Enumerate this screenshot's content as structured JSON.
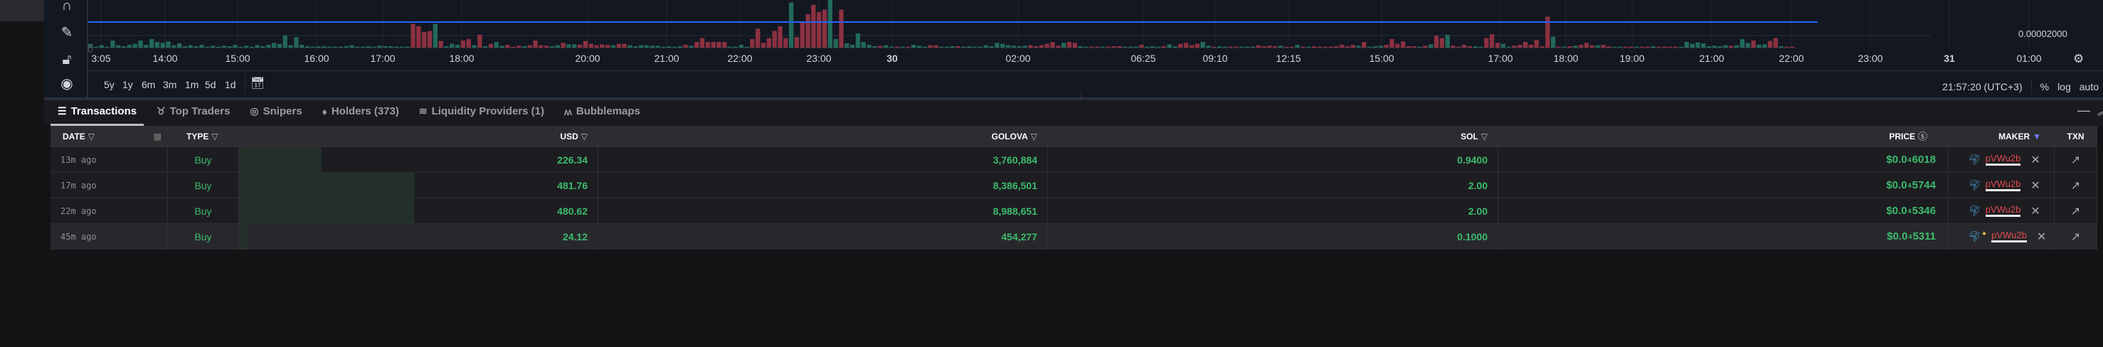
{
  "chart": {
    "price_axis_label": "0.00002000",
    "time_ticks": [
      "3:05",
      "14:00",
      "15:00",
      "16:00",
      "17:00",
      "18:00",
      "20:00",
      "21:00",
      "22:00",
      "23:00",
      "30",
      "02:00",
      "06:25",
      "09:10",
      "12:15",
      "15:00",
      "17:00",
      "18:00",
      "19:00",
      "21:00",
      "22:00",
      "23:00",
      "31",
      "01:00"
    ],
    "ranges": [
      "5y",
      "1y",
      "6m",
      "3m",
      "1m",
      "5d",
      "1d"
    ],
    "clock": "21:57:20 (UTC+3)",
    "scale_options": [
      "%",
      "log",
      "auto"
    ],
    "colors": {
      "up": "#22695a",
      "down": "#8c3140",
      "line": "#2962ff"
    },
    "volume": [
      8,
      2,
      5,
      2,
      15,
      5,
      3,
      6,
      8,
      15,
      6,
      18,
      12,
      10,
      13,
      5,
      9,
      3,
      5,
      3,
      6,
      2,
      4,
      2,
      4,
      3,
      6,
      2,
      4,
      2,
      5,
      3,
      6,
      10,
      8,
      26,
      5,
      22,
      6,
      3,
      2,
      3,
      3,
      2,
      2,
      2,
      3,
      5,
      2,
      2,
      3,
      2,
      4,
      3,
      3,
      2,
      2,
      2,
      -50,
      -45,
      -33,
      -35,
      50,
      -14,
      3,
      8,
      6,
      -15,
      -18,
      5,
      -27,
      3,
      -8,
      12,
      4,
      -6,
      -2,
      -4,
      3,
      -5,
      -15,
      -5,
      -4,
      3,
      5,
      -10,
      7,
      7,
      -6,
      -14,
      -8,
      -5,
      -7,
      -6,
      5,
      -8,
      -8,
      5,
      3,
      5,
      5,
      4,
      4,
      2,
      3,
      2,
      3,
      -6,
      4,
      -12,
      -20,
      -12,
      -12,
      -12,
      -12,
      2,
      2,
      6,
      2,
      -18,
      -40,
      -10,
      -20,
      -35,
      -45,
      -20,
      95,
      -22,
      -55,
      -70,
      -90,
      -75,
      -80,
      100,
      18,
      -80,
      9,
      6,
      30,
      12,
      6,
      3,
      -4,
      5,
      2,
      -2,
      2,
      -2,
      6,
      4,
      2,
      -5,
      -5,
      2,
      2,
      3,
      -3,
      2,
      3,
      2,
      2,
      5,
      3,
      10,
      8,
      5,
      4,
      3,
      4,
      -5,
      -3,
      -5,
      -8,
      -12,
      -4,
      10,
      -12,
      -10,
      3,
      2,
      -2,
      -2,
      2,
      -2,
      -3,
      -3,
      2,
      2,
      2,
      -6,
      2,
      3,
      2,
      -3,
      7,
      3,
      -8,
      -10,
      -5,
      -8,
      12,
      4,
      -2,
      3,
      2,
      -2,
      -2,
      2,
      2,
      2,
      -5,
      -3,
      -4,
      -3,
      4,
      -2,
      -2,
      6,
      -2,
      2,
      -3,
      -2,
      -2,
      -2,
      -3,
      -6,
      -3,
      -6,
      4,
      -12,
      2,
      3,
      4,
      -6,
      -18,
      -8,
      -13,
      -3,
      -3,
      2,
      -4,
      7,
      -25,
      -20,
      27,
      -4,
      -2,
      -6,
      -3,
      3,
      2,
      -20,
      -28,
      -10,
      8,
      2,
      -4,
      -6,
      -12,
      -6,
      -16,
      -3,
      -65,
      23,
      -2,
      2,
      -3,
      4,
      -6,
      -10,
      -5,
      5,
      -6,
      -3,
      2,
      2,
      -2,
      -2,
      2,
      -2,
      -2,
      3,
      -2,
      -2,
      -2,
      -2,
      2,
      12,
      8,
      11,
      9,
      3,
      4,
      3,
      5,
      -4,
      5,
      18,
      10,
      -15,
      6,
      7,
      -14,
      -20,
      3,
      -2,
      -2
    ]
  },
  "tabs": [
    {
      "label": "Transactions",
      "icon": "list-icon"
    },
    {
      "label": "Top Traders",
      "icon": "medal-icon"
    },
    {
      "label": "Snipers",
      "icon": "target-icon"
    },
    {
      "label": "Holders (373)",
      "icon": "diamond-icon"
    },
    {
      "label": "Liquidity Providers (1)",
      "icon": "waves-icon"
    },
    {
      "label": "Bubblemaps",
      "icon": "bubblemaps-icon"
    }
  ],
  "table": {
    "headers": {
      "date": "DATE",
      "type": "TYPE",
      "usd": "USD",
      "token": "GOLOVA",
      "sol": "SOL",
      "price": "PRICE",
      "maker": "MAKER",
      "txn": "TXN"
    },
    "rows": [
      {
        "date": "13m ago",
        "type": "Buy",
        "usd": "226.34",
        "usd_value": 226.34,
        "token": "3,760,884",
        "sol": "0.9400",
        "price_pre": "$0.0",
        "price_sub": "4",
        "price_digits": "6018",
        "maker": "pVWu2b"
      },
      {
        "date": "17m ago",
        "type": "Buy",
        "usd": "481.76",
        "usd_value": 481.76,
        "token": "8,386,501",
        "sol": "2.00",
        "price_pre": "$0.0",
        "price_sub": "4",
        "price_digits": "5744",
        "maker": "pVWu2b"
      },
      {
        "date": "22m ago",
        "type": "Buy",
        "usd": "480.62",
        "usd_value": 480.62,
        "token": "8,988,651",
        "sol": "2.00",
        "price_pre": "$0.0",
        "price_sub": "4",
        "price_digits": "5346",
        "maker": "pVWu2b"
      },
      {
        "date": "45m ago",
        "type": "Buy",
        "usd": "24.12",
        "usd_value": 24.12,
        "token": "454,277",
        "sol": "0.1000",
        "price_pre": "$0.0",
        "price_sub": "4",
        "price_digits": "5311",
        "maker": "pVWu2b"
      }
    ]
  }
}
